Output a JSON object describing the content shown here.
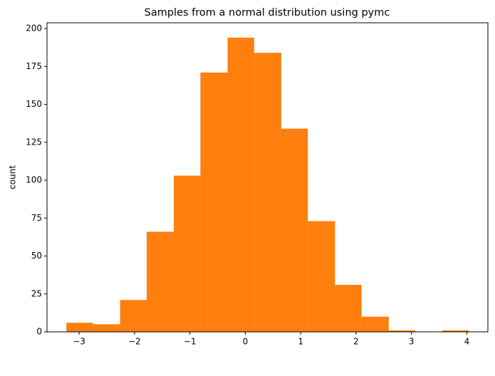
{
  "chart_data": {
    "type": "histogram",
    "title": "Samples from a normal distribution using pymc",
    "ylabel": "count",
    "bins": [
      -3.23,
      -2.75,
      -2.26,
      -1.78,
      -1.29,
      -0.81,
      -0.32,
      0.16,
      0.65,
      1.13,
      1.62,
      2.1,
      2.59,
      3.07,
      3.56,
      4.04
    ],
    "values": [
      6,
      5,
      21,
      66,
      103,
      171,
      194,
      184,
      134,
      73,
      31,
      10,
      1,
      0,
      1
    ],
    "color": "#ff7f0e",
    "xlim": [
      -3.58,
      4.38
    ],
    "xticks": [
      {
        "value": -3,
        "label": "−3"
      },
      {
        "value": -2,
        "label": "−2"
      },
      {
        "value": -1,
        "label": "−1"
      },
      0,
      1,
      2,
      3,
      4
    ],
    "ylim": [
      0,
      203.8
    ],
    "yticks": [
      0,
      25,
      50,
      75,
      100,
      125,
      150,
      175,
      200
    ]
  }
}
